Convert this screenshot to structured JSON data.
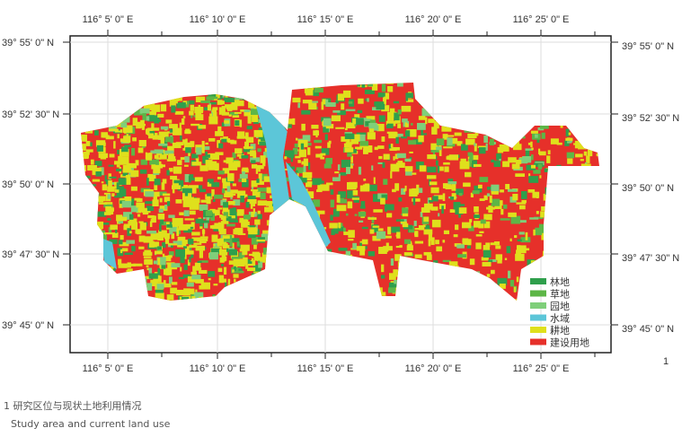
{
  "figure": {
    "number": "1",
    "caption_cn": "1 研究区位与现状土地利用情况",
    "caption_en": "Study area and current land use"
  },
  "axes": {
    "lon_labels": [
      "116° 5' 0\" E",
      "116° 10' 0\" E",
      "116° 15' 0\" E",
      "116° 20' 0\" E",
      "116° 25' 0\" E"
    ],
    "lat_labels": [
      "39° 55' 0\" N",
      "39° 52' 30\" N",
      "39° 50' 0\" N",
      "39° 47' 30\" N",
      "39° 45' 0\" N"
    ]
  },
  "legend": [
    {
      "label": "林地",
      "color": "#2f9f4c"
    },
    {
      "label": "草地",
      "color": "#5db647"
    },
    {
      "label": "园地",
      "color": "#7fcf7a"
    },
    {
      "label": "水域",
      "color": "#5cc6d8"
    },
    {
      "label": "耕地",
      "color": "#dfe01c"
    },
    {
      "label": "建设用地",
      "color": "#e6302a"
    }
  ]
}
